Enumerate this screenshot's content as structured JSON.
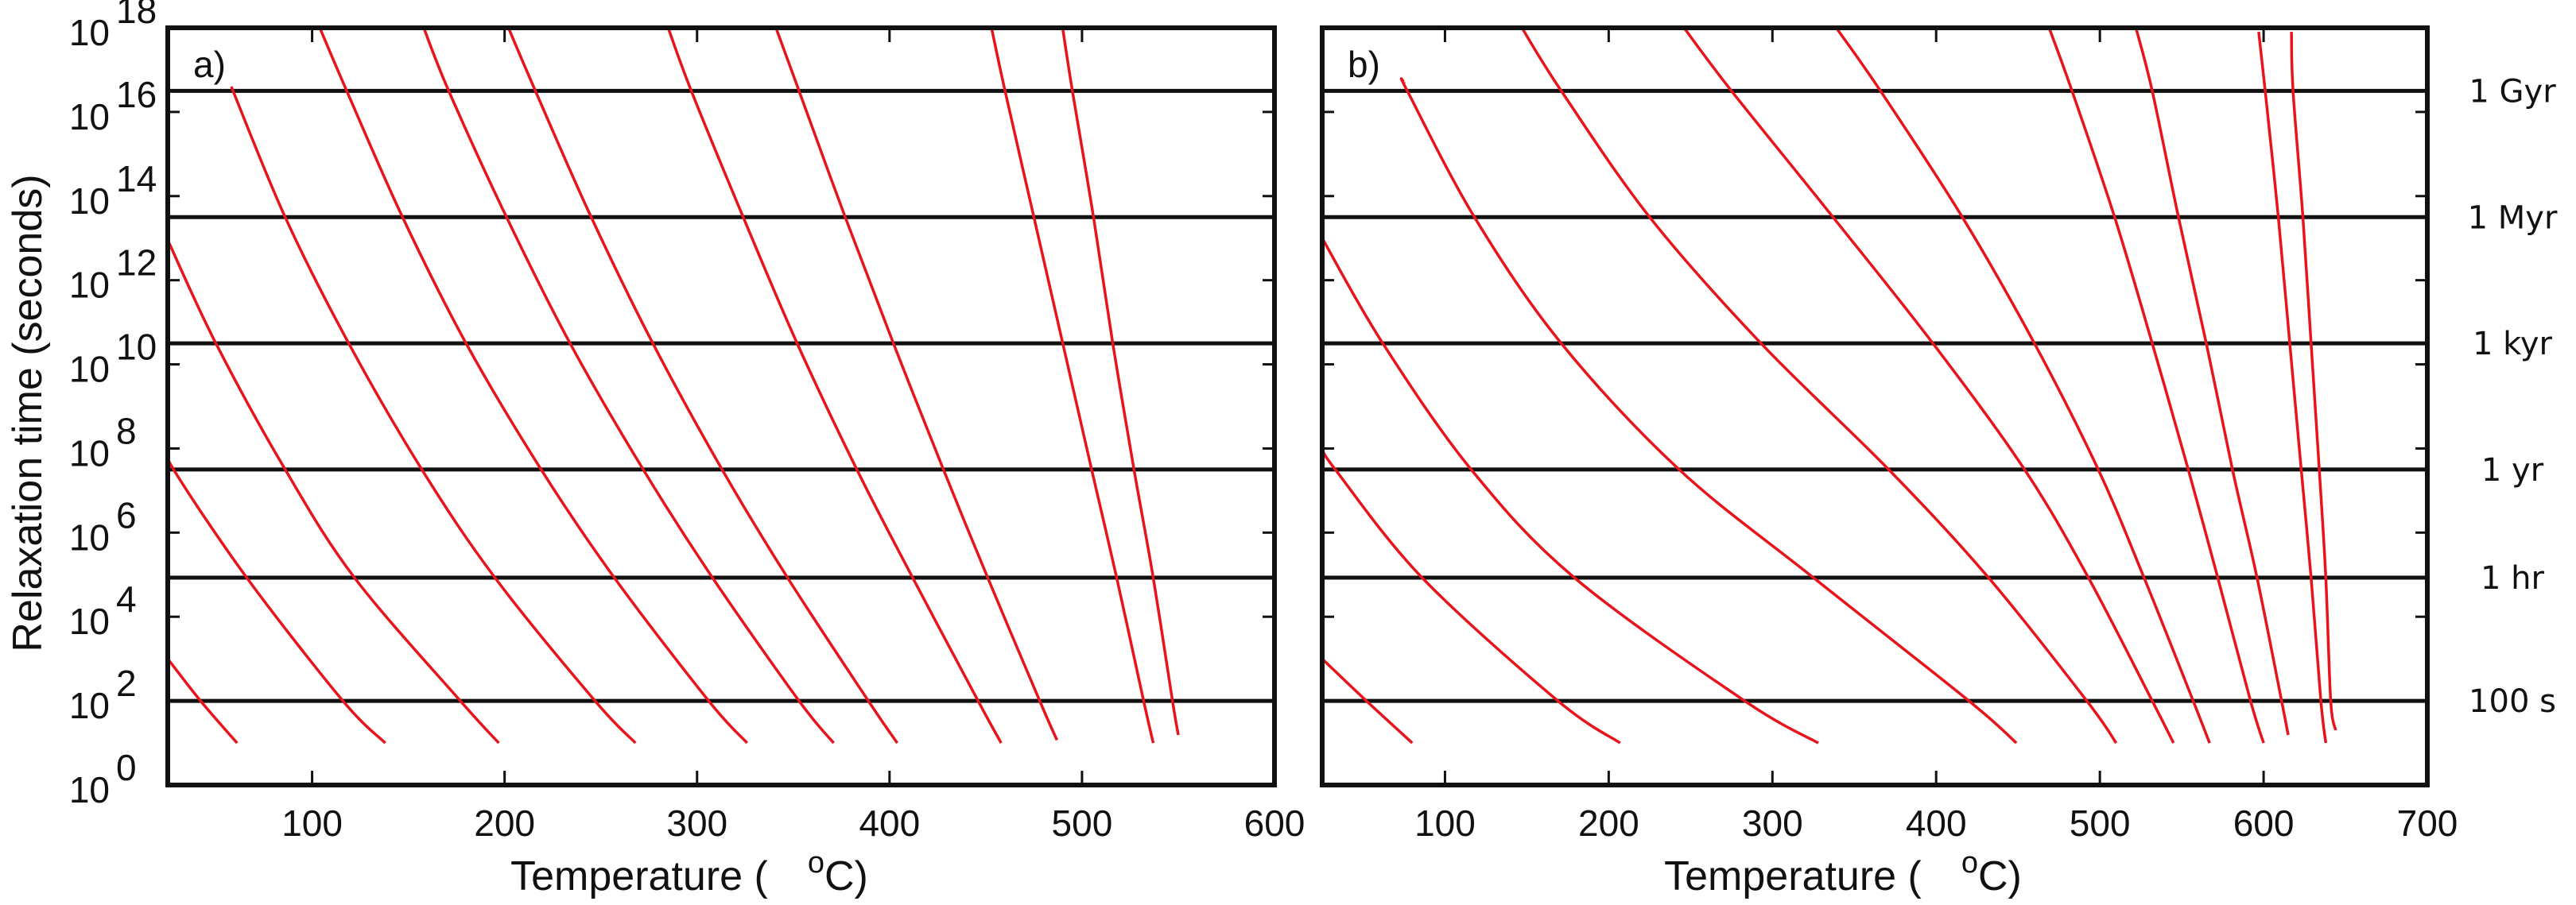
{
  "figure": {
    "ylabel": "Relaxation time (seconds)",
    "ytick_base": "10",
    "colors": {
      "curve": "#e8141c",
      "axis": "#111111",
      "reference_line": "#111111"
    },
    "reference_lines": [
      {
        "label": "1 Gyr",
        "seconds": 3.16e+16
      },
      {
        "label": "1 Myr",
        "seconds": 31600000000000.0
      },
      {
        "label": "1 kyr",
        "seconds": 31600000000.0
      },
      {
        "label": "1 yr",
        "seconds": 31600000.0
      },
      {
        "label": "1 hr",
        "seconds": 85000.0
      },
      {
        "label": "100 s",
        "seconds": 100
      }
    ]
  },
  "chart_data": [
    {
      "type": "line",
      "panel_label": "a)",
      "xlabel_prefix": "Temperature (",
      "xlabel_sup": "o",
      "xlabel_suffix": "C)",
      "xlim": [
        25,
        600
      ],
      "xticks": [
        100,
        200,
        300,
        400,
        500,
        600
      ],
      "ylim": [
        1,
        1e+18
      ],
      "yscale": "log",
      "yticks_exponents": [
        0,
        2,
        4,
        6,
        8,
        10,
        12,
        14,
        16,
        18
      ],
      "show_ytick_labels": true,
      "grid": false,
      "series": [
        {
          "T": [
            25,
            42,
            61
          ],
          "tau": [
            1000,
            100,
            10
          ]
        },
        {
          "T": [
            25,
            28,
            66,
            116,
            138
          ],
          "tau": [
            100000000.0,
            31600000.0,
            85000.0,
            100,
            10
          ]
        },
        {
          "T": [
            25,
            50,
            86,
            122,
            177,
            197
          ],
          "tau": [
            9000000000000.0,
            31600000000.0,
            31600000.0,
            85000.0,
            100,
            10
          ]
        },
        {
          "T": [
            58,
            86,
            119,
            157,
            195,
            247,
            268
          ],
          "tau": [
            4e+16,
            31600000000000.0,
            31600000000.0,
            31600000.0,
            85000.0,
            100,
            10
          ]
        },
        {
          "T": [
            104,
            118,
            147,
            180,
            219,
            257,
            306,
            326
          ],
          "tau": [
            1e+18,
            3.16e+16,
            31600000000000.0,
            31600000000.0,
            31600000.0,
            85000.0,
            100,
            10
          ]
        },
        {
          "T": [
            158,
            171,
            201,
            234,
            272,
            308,
            353,
            371
          ],
          "tau": [
            1e+18,
            3.16e+16,
            31600000000000.0,
            31600000000.0,
            31600000.0,
            85000.0,
            100,
            10
          ]
        },
        {
          "T": [
            202,
            216,
            245,
            277,
            313,
            347,
            389,
            404
          ],
          "tau": [
            1e+18,
            3.16e+16,
            31600000000000.0,
            31600000000.0,
            31600000.0,
            85000.0,
            100,
            10
          ]
        },
        {
          "T": [
            285,
            297,
            324,
            352,
            383,
            412,
            446,
            458
          ],
          "tau": [
            1e+18,
            3.16e+16,
            31600000000000.0,
            31600000000.0,
            31600000.0,
            85000.0,
            100,
            10
          ]
        },
        {
          "T": [
            341,
            353,
            377,
            402,
            428,
            451,
            478,
            487
          ],
          "tau": [
            1e+18,
            3.16e+16,
            31600000000000.0,
            31600000000.0,
            31600000.0,
            85000.0,
            100,
            11.7
          ]
        },
        {
          "T": [
            453,
            460,
            475,
            490,
            505,
            518,
            532,
            537
          ],
          "tau": [
            1e+18,
            3.16e+16,
            31600000000000.0,
            31600000000.0,
            31600000.0,
            85000.0,
            100,
            10
          ]
        },
        {
          "T": [
            490,
            495,
            506,
            516,
            527,
            537,
            547,
            550
          ],
          "tau": [
            9.5e+17,
            3.16e+16,
            31600000000000.0,
            31600000000.0,
            31600000.0,
            85000.0,
            100,
            15.5
          ]
        }
      ]
    },
    {
      "type": "line",
      "panel_label": "b)",
      "xlabel_prefix": "Temperature (",
      "xlabel_sup": "o",
      "xlabel_suffix": "C)",
      "xlim": [
        25,
        700
      ],
      "xticks": [
        100,
        200,
        300,
        400,
        500,
        600,
        700
      ],
      "ylim": [
        1,
        1e+18
      ],
      "yscale": "log",
      "yticks_exponents": [
        0,
        2,
        4,
        6,
        8,
        10,
        12,
        14,
        16,
        18
      ],
      "show_ytick_labels": false,
      "grid": false,
      "series": [
        {
          "T": [
            25,
            52,
            80
          ],
          "tau": [
            1000,
            100,
            10
          ]
        },
        {
          "T": [
            25,
            33,
            86,
            169,
            207
          ],
          "tau": [
            100000000.0,
            31600000.0,
            85000.0,
            100,
            10
          ]
        },
        {
          "T": [
            25,
            62,
            116,
            179,
            283,
            328
          ],
          "tau": [
            10000000000000.0,
            31600000000.0,
            31600000.0,
            85000.0,
            100,
            10
          ]
        },
        {
          "T": [
            75,
            77,
            118,
            171,
            243,
            325,
            420,
            449
          ],
          "tau": [
            5e+16,
            3.16e+16,
            31600000000000.0,
            31600000000.0,
            31600000.0,
            85000.0,
            100,
            10
          ]
        },
        {
          "T": [
            147,
            171,
            225,
            293,
            371,
            432,
            492,
            510
          ],
          "tau": [
            1e+18,
            3.16e+16,
            31600000000000.0,
            31600000000.0,
            31600000.0,
            85000.0,
            100,
            10
          ]
        },
        {
          "T": [
            246,
            275,
            337,
            398,
            454,
            493,
            532,
            545
          ],
          "tau": [
            1e+18,
            3.16e+16,
            31600000000000.0,
            31600000000.0,
            31600000.0,
            85000.0,
            100,
            10
          ]
        },
        {
          "T": [
            339,
            366,
            416,
            460,
            499,
            527,
            557,
            567
          ],
          "tau": [
            1e+18,
            3.16e+16,
            31600000000000.0,
            31600000000.0,
            31600000.0,
            85000.0,
            100,
            10
          ]
        },
        {
          "T": [
            469,
            483,
            509,
            532,
            554,
            572,
            592,
            600
          ],
          "tau": [
            1e+18,
            3.16e+16,
            31600000000000.0,
            31600000000.0,
            31600000.0,
            85000.0,
            100,
            10
          ]
        },
        {
          "T": [
            522,
            532,
            548,
            565,
            581,
            596,
            611,
            615
          ],
          "tau": [
            1e+18,
            3.16e+16,
            31600000000000.0,
            31600000000.0,
            31600000.0,
            85000.0,
            100,
            15.5
          ]
        },
        {
          "T": [
            597,
            601,
            609,
            616,
            623,
            629,
            635,
            638
          ],
          "tau": [
            8e+17,
            3.16e+16,
            31600000000000.0,
            31600000000.0,
            31600000.0,
            85000.0,
            100,
            10
          ]
        },
        {
          "T": [
            617,
            618,
            624,
            629,
            634,
            638,
            641,
            644
          ],
          "tau": [
            8e+17,
            3.16e+16,
            31600000000000.0,
            31600000000.0,
            31600000.0,
            85000.0,
            100,
            20
          ]
        }
      ]
    }
  ]
}
